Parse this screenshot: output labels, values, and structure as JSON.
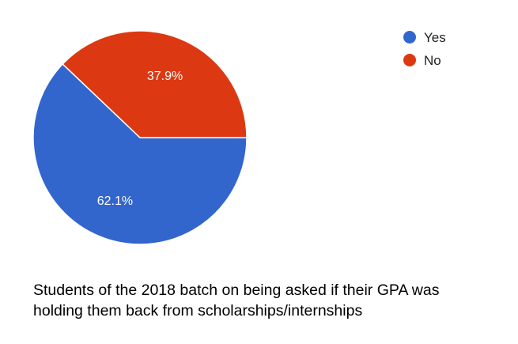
{
  "chart_data": {
    "type": "pie",
    "categories": [
      "Yes",
      "No"
    ],
    "values": [
      62.1,
      37.9
    ],
    "unit": "%",
    "slice_labels": [
      "62.1%",
      "37.9%"
    ],
    "colors": [
      "#3366cc",
      "#dc3912"
    ],
    "legend": {
      "position": "top-right",
      "entries": [
        {
          "label": "Yes",
          "color": "#3366cc"
        },
        {
          "label": "No",
          "color": "#dc3912"
        }
      ]
    }
  },
  "caption": {
    "line1": "Students of the 2018 batch on being asked if their GPA was",
    "line2": "holding them back from scholarships/internships"
  }
}
